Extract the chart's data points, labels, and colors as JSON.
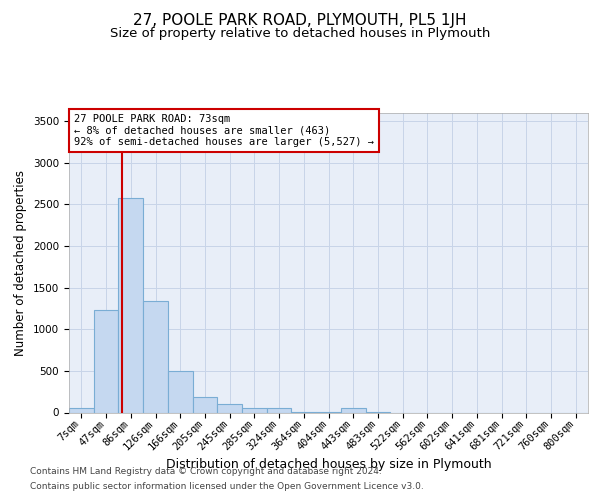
{
  "title": "27, POOLE PARK ROAD, PLYMOUTH, PL5 1JH",
  "subtitle": "Size of property relative to detached houses in Plymouth",
  "xlabel": "Distribution of detached houses by size in Plymouth",
  "ylabel": "Number of detached properties",
  "bar_labels": [
    "7sqm",
    "47sqm",
    "86sqm",
    "126sqm",
    "166sqm",
    "205sqm",
    "245sqm",
    "285sqm",
    "324sqm",
    "364sqm",
    "404sqm",
    "443sqm",
    "483sqm",
    "522sqm",
    "562sqm",
    "602sqm",
    "641sqm",
    "681sqm",
    "721sqm",
    "760sqm",
    "800sqm"
  ],
  "bar_values": [
    50,
    1230,
    2570,
    1340,
    500,
    190,
    100,
    55,
    50,
    5,
    5,
    50,
    5,
    0,
    0,
    0,
    0,
    0,
    0,
    0,
    0
  ],
  "bar_color": "#c5d8f0",
  "bar_edge_color": "#7aadd4",
  "bar_edge_width": 0.8,
  "grid_color": "#c8d4e8",
  "background_color": "#e8eef8",
  "redline_x": 1.65,
  "annotation_text": "27 POOLE PARK ROAD: 73sqm\n← 8% of detached houses are smaller (463)\n92% of semi-detached houses are larger (5,527) →",
  "annotation_box_color": "#ffffff",
  "annotation_border_color": "#cc0000",
  "ylim": [
    0,
    3600
  ],
  "yticks": [
    0,
    500,
    1000,
    1500,
    2000,
    2500,
    3000,
    3500
  ],
  "footer1": "Contains HM Land Registry data © Crown copyright and database right 2024.",
  "footer2": "Contains public sector information licensed under the Open Government Licence v3.0.",
  "title_fontsize": 11,
  "subtitle_fontsize": 9.5,
  "xlabel_fontsize": 9,
  "ylabel_fontsize": 8.5,
  "tick_fontsize": 7.5,
  "annotation_fontsize": 7.5,
  "footer_fontsize": 6.5
}
